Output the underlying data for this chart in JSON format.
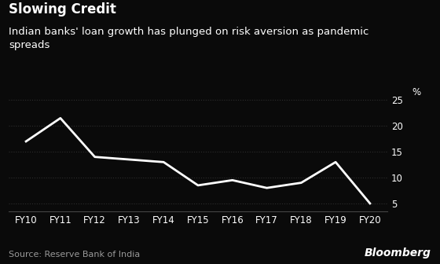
{
  "title": "Slowing Credit",
  "subtitle": "Indian banks' loan growth has plunged on risk aversion as pandemic\nspreads",
  "source": "Source: Reserve Bank of India",
  "branding": "Bloomberg",
  "x_labels": [
    "FY10",
    "FY11",
    "FY12",
    "FY13",
    "FY14",
    "FY15",
    "FY16",
    "FY17",
    "FY18",
    "FY19",
    "FY20"
  ],
  "y_values": [
    17.0,
    21.5,
    14.0,
    13.5,
    13.0,
    8.5,
    9.5,
    8.0,
    9.0,
    13.0,
    5.0
  ],
  "y_label": "%",
  "y_ticks": [
    5,
    10,
    15,
    20,
    25
  ],
  "ylim": [
    3.5,
    27.5
  ],
  "background_color": "#0a0a0a",
  "line_color": "#ffffff",
  "text_color": "#ffffff",
  "grid_color": "#2e2e2e",
  "title_fontsize": 12,
  "subtitle_fontsize": 9.5,
  "tick_fontsize": 8.5,
  "source_fontsize": 8,
  "brand_fontsize": 10
}
